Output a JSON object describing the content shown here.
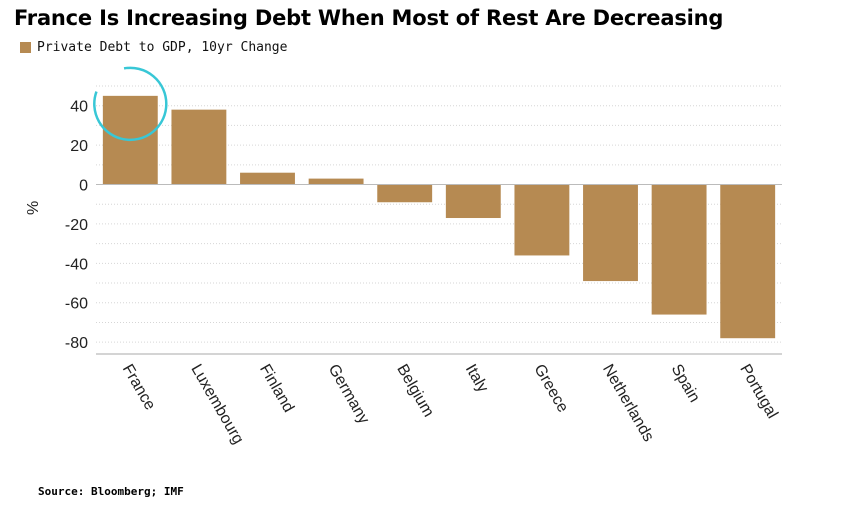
{
  "title": "France Is Increasing Debt When Most of Rest Are Decreasing",
  "source": "Source: Bloomberg; IMF",
  "axis_unit_label": "%",
  "chart_data": {
    "type": "bar",
    "categories": [
      "France",
      "Luxembourg",
      "Finland",
      "Germany",
      "Belgium",
      "Italy",
      "Greece",
      "Netherlands",
      "Spain",
      "Portugal"
    ],
    "series": [
      {
        "name": "Private Debt to GDP, 10yr Change",
        "values": [
          45,
          38,
          6,
          3,
          -9,
          -17,
          -36,
          -49,
          -66,
          -78
        ],
        "color": "#b68a52"
      }
    ],
    "ylim": [
      -85,
      50
    ],
    "yticks": [
      40,
      20,
      0,
      -20,
      -40,
      -60,
      -80
    ],
    "grid": true,
    "legend": "top-left",
    "annotation_color": "#38c7d6"
  }
}
